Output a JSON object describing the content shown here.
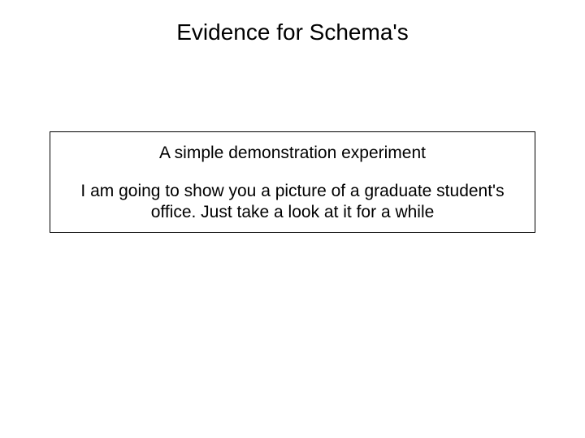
{
  "slide": {
    "title": "Evidence for Schema's",
    "box": {
      "subtitle": "A simple demonstration experiment",
      "body": "I am going to show you a picture of a graduate student's office. Just take a look at it for a while"
    }
  },
  "styling": {
    "background_color": "#ffffff",
    "text_color": "#000000",
    "border_color": "#000000",
    "title_fontsize": 28,
    "body_fontsize": 21,
    "font_family": "Arial"
  }
}
